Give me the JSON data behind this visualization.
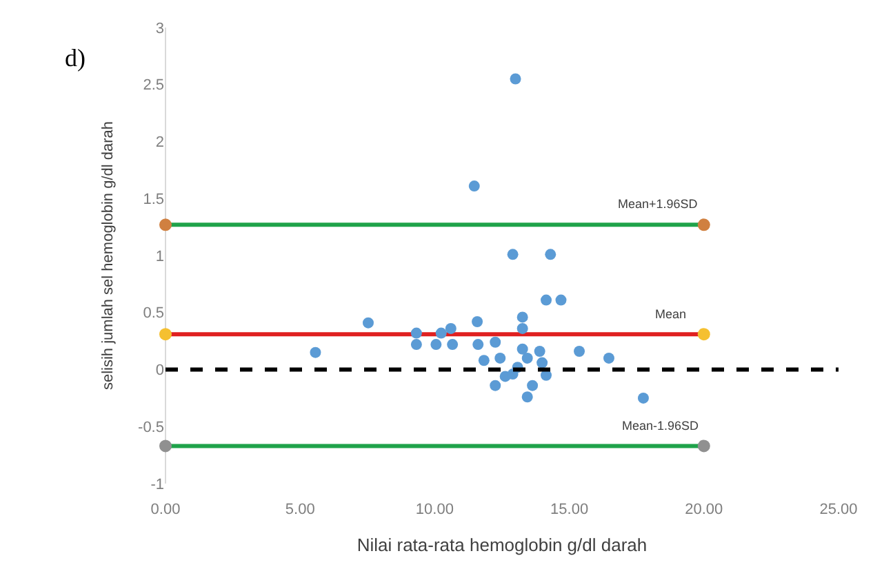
{
  "chart_data": {
    "type": "scatter",
    "xlabel": "Nilai rata-rata hemoglobin g/dl darah",
    "ylabel": "selisih jumlah sel hemoglobin g/dl darah",
    "xlim": [
      0,
      25
    ],
    "xticks": [
      {
        "value": 0,
        "label": "0.00"
      },
      {
        "value": 5,
        "label": "5.00"
      },
      {
        "value": 10,
        "label": "10.00"
      },
      {
        "value": 15,
        "label": "15.00"
      },
      {
        "value": 20,
        "label": "20.00"
      },
      {
        "value": 25,
        "label": "25.00"
      }
    ],
    "ylim": [
      -1,
      3
    ],
    "yticks": [
      -1,
      -0.5,
      0,
      0.5,
      1,
      1.5,
      2,
      2.5,
      3
    ],
    "grid": false,
    "series": [
      {
        "type": "line",
        "color": "#1fa34a",
        "marker": "circle",
        "colors": [
          "#d08040",
          "#d08040"
        ],
        "x": [
          0,
          20
        ],
        "values": [
          1.27,
          1.27
        ]
      },
      {
        "type": "line",
        "color": "#e02020",
        "marker": "circle",
        "colors": [
          "#f5c030",
          "#f5c030"
        ],
        "x": [
          0,
          20
        ],
        "values": [
          0.31,
          0.31
        ]
      },
      {
        "type": "line",
        "color": "#1fa34a",
        "marker": "circle",
        "colors": [
          "#909090",
          "#909090"
        ],
        "x": [
          0,
          20
        ],
        "values": [
          -0.67,
          -0.67
        ]
      },
      {
        "color": "#5b9bd5",
        "marker": "circle",
        "x": [
          13.0,
          11.47,
          12.9,
          14.3,
          14.14,
          14.69,
          7.53,
          5.57,
          9.32,
          9.32,
          10.05,
          10.24,
          10.6,
          10.66,
          11.58,
          11.61,
          11.83,
          12.25,
          12.43,
          12.25,
          12.62,
          12.9,
          13.26,
          13.26,
          13.26,
          13.44,
          13.63,
          13.44,
          13.9,
          13.99,
          14.14,
          15.37,
          16.47,
          17.75,
          13.08
        ],
        "values": [
          2.55,
          1.61,
          1.01,
          1.01,
          0.61,
          0.61,
          0.41,
          0.15,
          0.32,
          0.22,
          0.22,
          0.32,
          0.36,
          0.22,
          0.42,
          0.22,
          0.08,
          0.24,
          0.1,
          -0.14,
          -0.06,
          -0.04,
          0.46,
          0.36,
          0.18,
          0.1,
          -0.14,
          -0.24,
          0.16,
          0.06,
          -0.05,
          0.16,
          0.1,
          -0.25,
          0.02
        ]
      }
    ],
    "ref_lines": [
      {
        "axis": "y",
        "value": 0,
        "color": "#000000",
        "line_style": "dashed"
      }
    ],
    "annotations": [
      "d)",
      {
        "text": "Mean+1.96SD",
        "x": 18.3,
        "y": 1.27
      },
      {
        "text": "Mean",
        "x": 18.8,
        "y": 0.31
      },
      {
        "text": "Mean-1.96SD",
        "x": 18.4,
        "y": -0.67
      }
    ]
  }
}
